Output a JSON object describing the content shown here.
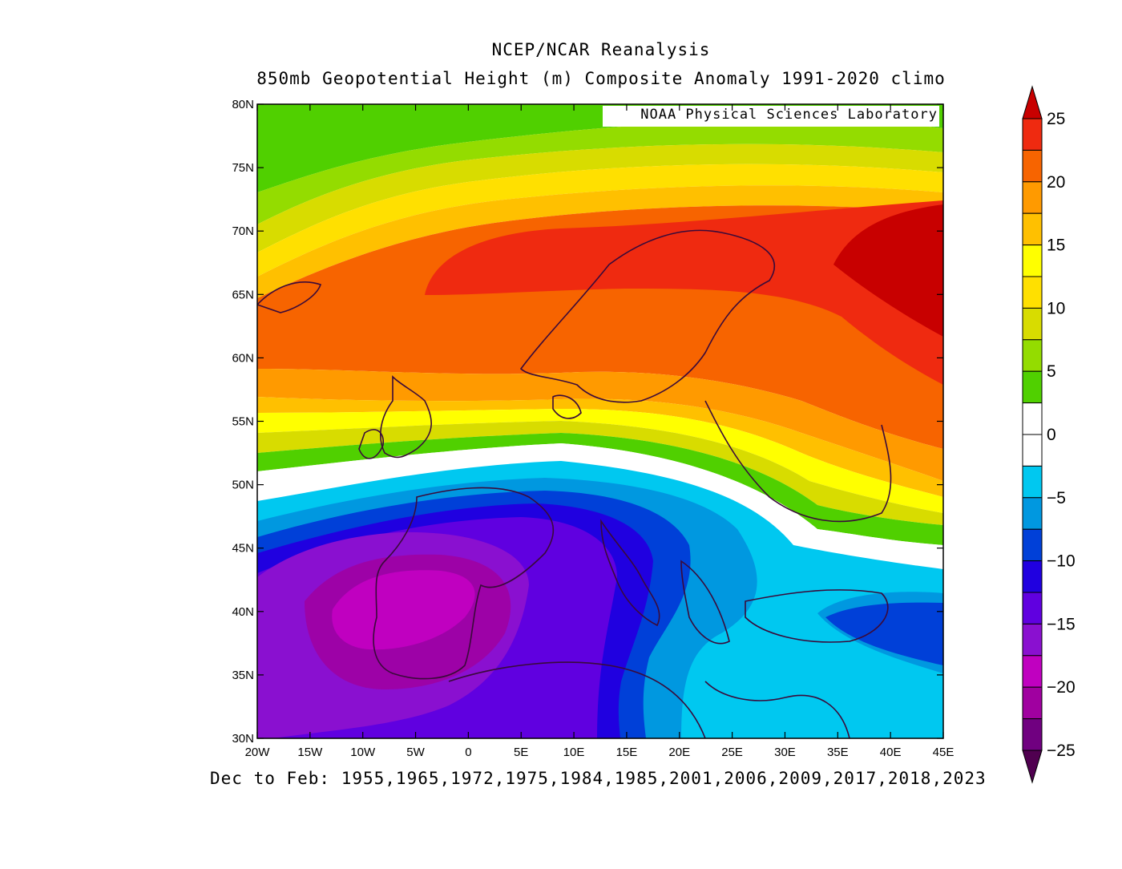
{
  "titles": {
    "line1": "NCEP/NCAR Reanalysis",
    "line2": "850mb Geopotential Height (m) Composite Anomaly 1991-2020 climo"
  },
  "credit": "NOAA Physical Sciences Laboratory",
  "footer": "Dec to Feb: 1955,1965,1972,1975,1984,1985,2001,2006,2009,2017,2018,2023",
  "map": {
    "lat_ticks": [
      "30N",
      "35N",
      "40N",
      "45N",
      "50N",
      "55N",
      "60N",
      "65N",
      "70N",
      "75N",
      "80N"
    ],
    "lon_ticks": [
      "20W",
      "15W",
      "10W",
      "5W",
      "0",
      "5E",
      "10E",
      "15E",
      "20E",
      "25E",
      "30E",
      "35E",
      "40E",
      "45E"
    ],
    "lat_range": [
      30,
      80
    ],
    "lon_range": [
      -20,
      45
    ]
  },
  "colorbar": {
    "labels": [
      "25",
      "20",
      "15",
      "10",
      "5",
      "0",
      "-5",
      "-10",
      "-15",
      "-20",
      "-25"
    ],
    "levels": [
      25,
      22.5,
      20,
      17.5,
      15,
      12.5,
      10,
      7.5,
      5,
      2.5,
      0,
      -2.5,
      -5,
      -7.5,
      -10,
      -12.5,
      -15,
      -17.5,
      -20,
      -22.5,
      -25
    ],
    "colors_top_to_bottom": [
      "#ef2a10",
      "#f76400",
      "#ff9a00",
      "#ffc000",
      "#ffff00",
      "#ffe000",
      "#d8dc00",
      "#94dc00",
      "#50d000",
      "#ffffff",
      "#ffffff",
      "#00c8f0",
      "#0098e0",
      "#0040d8",
      "#2000e0",
      "#6000e0",
      "#8a10d0",
      "#c000c0",
      "#a000a0",
      "#700080"
    ],
    "overflow_top_color": "#c80000",
    "overflow_bottom_color": "#500050"
  }
}
